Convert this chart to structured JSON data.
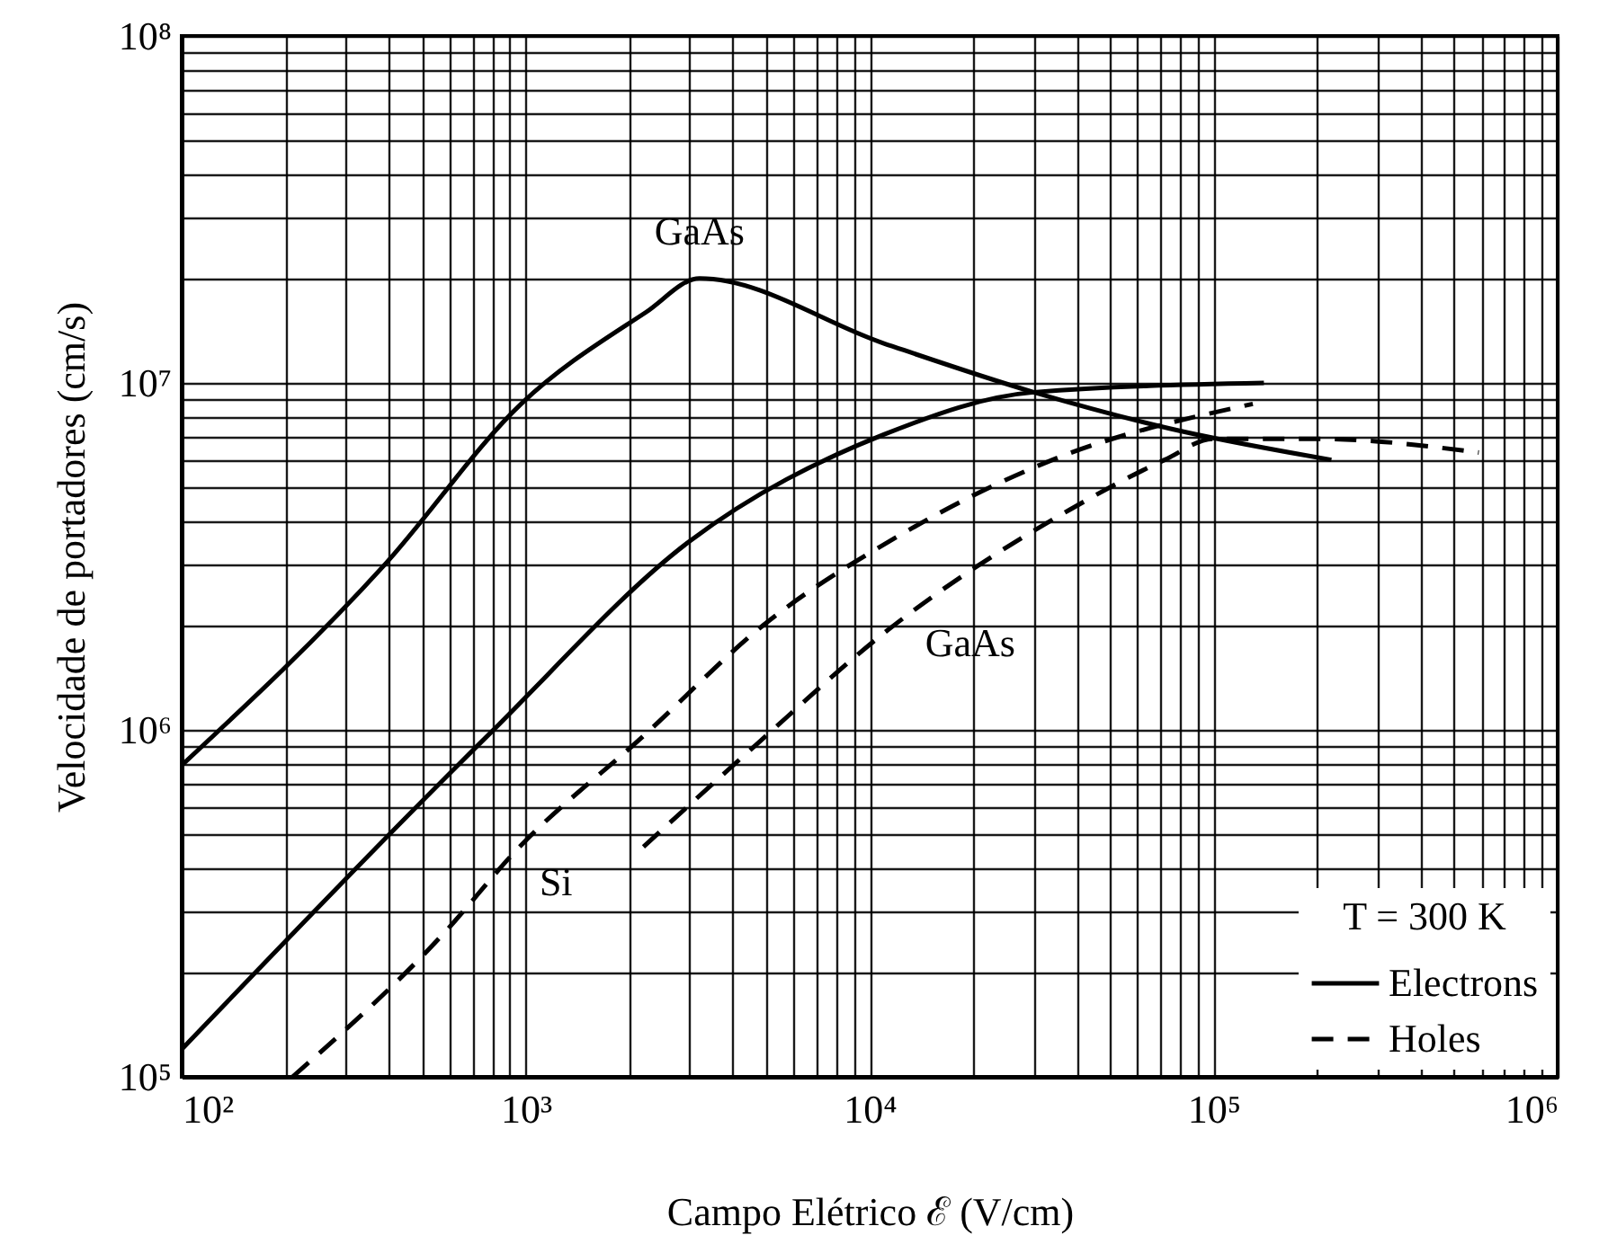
{
  "chart_data": {
    "type": "line",
    "xlabel": "Campo Elétrico ℰ (V/cm)",
    "ylabel": "Velocidade  de portadores (cm/s)",
    "log": "xy",
    "grid": true,
    "legend": "bottom right",
    "legend_title": "T = 300 K",
    "marker": "none",
    "xlim": [
      100,
      1000000
    ],
    "ylim": [
      100000,
      100000000
    ],
    "xticks": [
      {
        "value": 100,
        "label": "10²"
      },
      {
        "value": 200,
        "label": null
      },
      {
        "value": 300,
        "label": null
      },
      {
        "value": 400,
        "label": null
      },
      {
        "value": 500,
        "label": null
      },
      {
        "value": 600,
        "label": null
      },
      {
        "value": 700,
        "label": null
      },
      {
        "value": 800,
        "label": null
      },
      {
        "value": 900,
        "label": null
      },
      {
        "value": 1000,
        "label": "10³"
      },
      {
        "value": 2000,
        "label": null
      },
      {
        "value": 3000,
        "label": null
      },
      {
        "value": 4000,
        "label": null
      },
      {
        "value": 5000,
        "label": null
      },
      {
        "value": 6000,
        "label": null
      },
      {
        "value": 7000,
        "label": null
      },
      {
        "value": 8000,
        "label": null
      },
      {
        "value": 9000,
        "label": null
      },
      {
        "value": 10000,
        "label": "10⁴"
      },
      {
        "value": 20000,
        "label": null
      },
      {
        "value": 30000,
        "label": null
      },
      {
        "value": 40000,
        "label": null
      },
      {
        "value": 50000,
        "label": null
      },
      {
        "value": 60000,
        "label": null
      },
      {
        "value": 70000,
        "label": null
      },
      {
        "value": 80000,
        "label": null
      },
      {
        "value": 90000,
        "label": null
      },
      {
        "value": 100000,
        "label": "10⁵"
      },
      {
        "value": 200000,
        "label": null
      },
      {
        "value": 300000,
        "label": null
      },
      {
        "value": 400000,
        "label": null
      },
      {
        "value": 500000,
        "label": null
      },
      {
        "value": 600000,
        "label": null
      },
      {
        "value": 700000,
        "label": null
      },
      {
        "value": 800000,
        "label": null
      },
      {
        "value": 900000,
        "label": null
      },
      {
        "value": 1000000,
        "label": "10⁶"
      }
    ],
    "yticks": [
      {
        "value": 100000,
        "label": "10⁵"
      },
      {
        "value": 200000,
        "label": null
      },
      {
        "value": 300000,
        "label": null
      },
      {
        "value": 400000,
        "label": null
      },
      {
        "value": 500000,
        "label": null
      },
      {
        "value": 600000,
        "label": null
      },
      {
        "value": 700000,
        "label": null
      },
      {
        "value": 800000,
        "label": null
      },
      {
        "value": 900000,
        "label": null
      },
      {
        "value": 1000000,
        "label": "10⁶"
      },
      {
        "value": 2000000,
        "label": null
      },
      {
        "value": 3000000,
        "label": null
      },
      {
        "value": 4000000,
        "label": null
      },
      {
        "value": 5000000,
        "label": null
      },
      {
        "value": 6000000,
        "label": null
      },
      {
        "value": 7000000,
        "label": null
      },
      {
        "value": 8000000,
        "label": null
      },
      {
        "value": 9000000,
        "label": null
      },
      {
        "value": 10000000,
        "label": "10⁷"
      },
      {
        "value": 20000000,
        "label": null
      },
      {
        "value": 30000000,
        "label": null
      },
      {
        "value": 40000000,
        "label": null
      },
      {
        "value": 50000000,
        "label": null
      },
      {
        "value": 60000000,
        "label": null
      },
      {
        "value": 70000000,
        "label": null
      },
      {
        "value": 80000000,
        "label": null
      },
      {
        "value": 90000000,
        "label": null
      },
      {
        "value": 100000000,
        "label": "10⁸"
      }
    ],
    "series": [
      {
        "name": "Electrons",
        "color": "#000000",
        "line_style": "solid",
        "x": [
          100,
          390,
          970,
          2240,
          3200,
          11000,
          30000,
          74000,
          220000
        ],
        "values": [
          790000,
          3000000,
          8700000,
          16000000,
          20000000,
          13000000,
          9400000,
          7400000,
          6000000
        ]
      },
      {
        "color": "#000000",
        "line_style": "solid",
        "x": [
          100,
          790,
          3000,
          11000,
          30000,
          140000
        ],
        "values": [
          120000,
          980000,
          3500000,
          7100000,
          9400000,
          10000000
        ]
      },
      {
        "name": "Holes",
        "color": "#000000",
        "line_style": "dashed",
        "x": [
          210,
          580,
          940,
          2200,
          4900,
          12000,
          34000,
          130000
        ],
        "values": [
          100000,
          260000,
          450000,
          960000,
          2000000,
          3600000,
          6000000,
          8700000
        ]
      },
      {
        "color": "#000000",
        "line_style": "dashed",
        "x": [
          2200,
          4700,
          11000,
          38000,
          72000,
          100000,
          200000,
          590000
        ],
        "values": [
          460000,
          910000,
          1900000,
          4300000,
          6000000,
          6900000,
          6900000,
          6300000
        ]
      }
    ],
    "annotations": [
      "GaAs",
      "GaAs",
      "Si"
    ]
  }
}
